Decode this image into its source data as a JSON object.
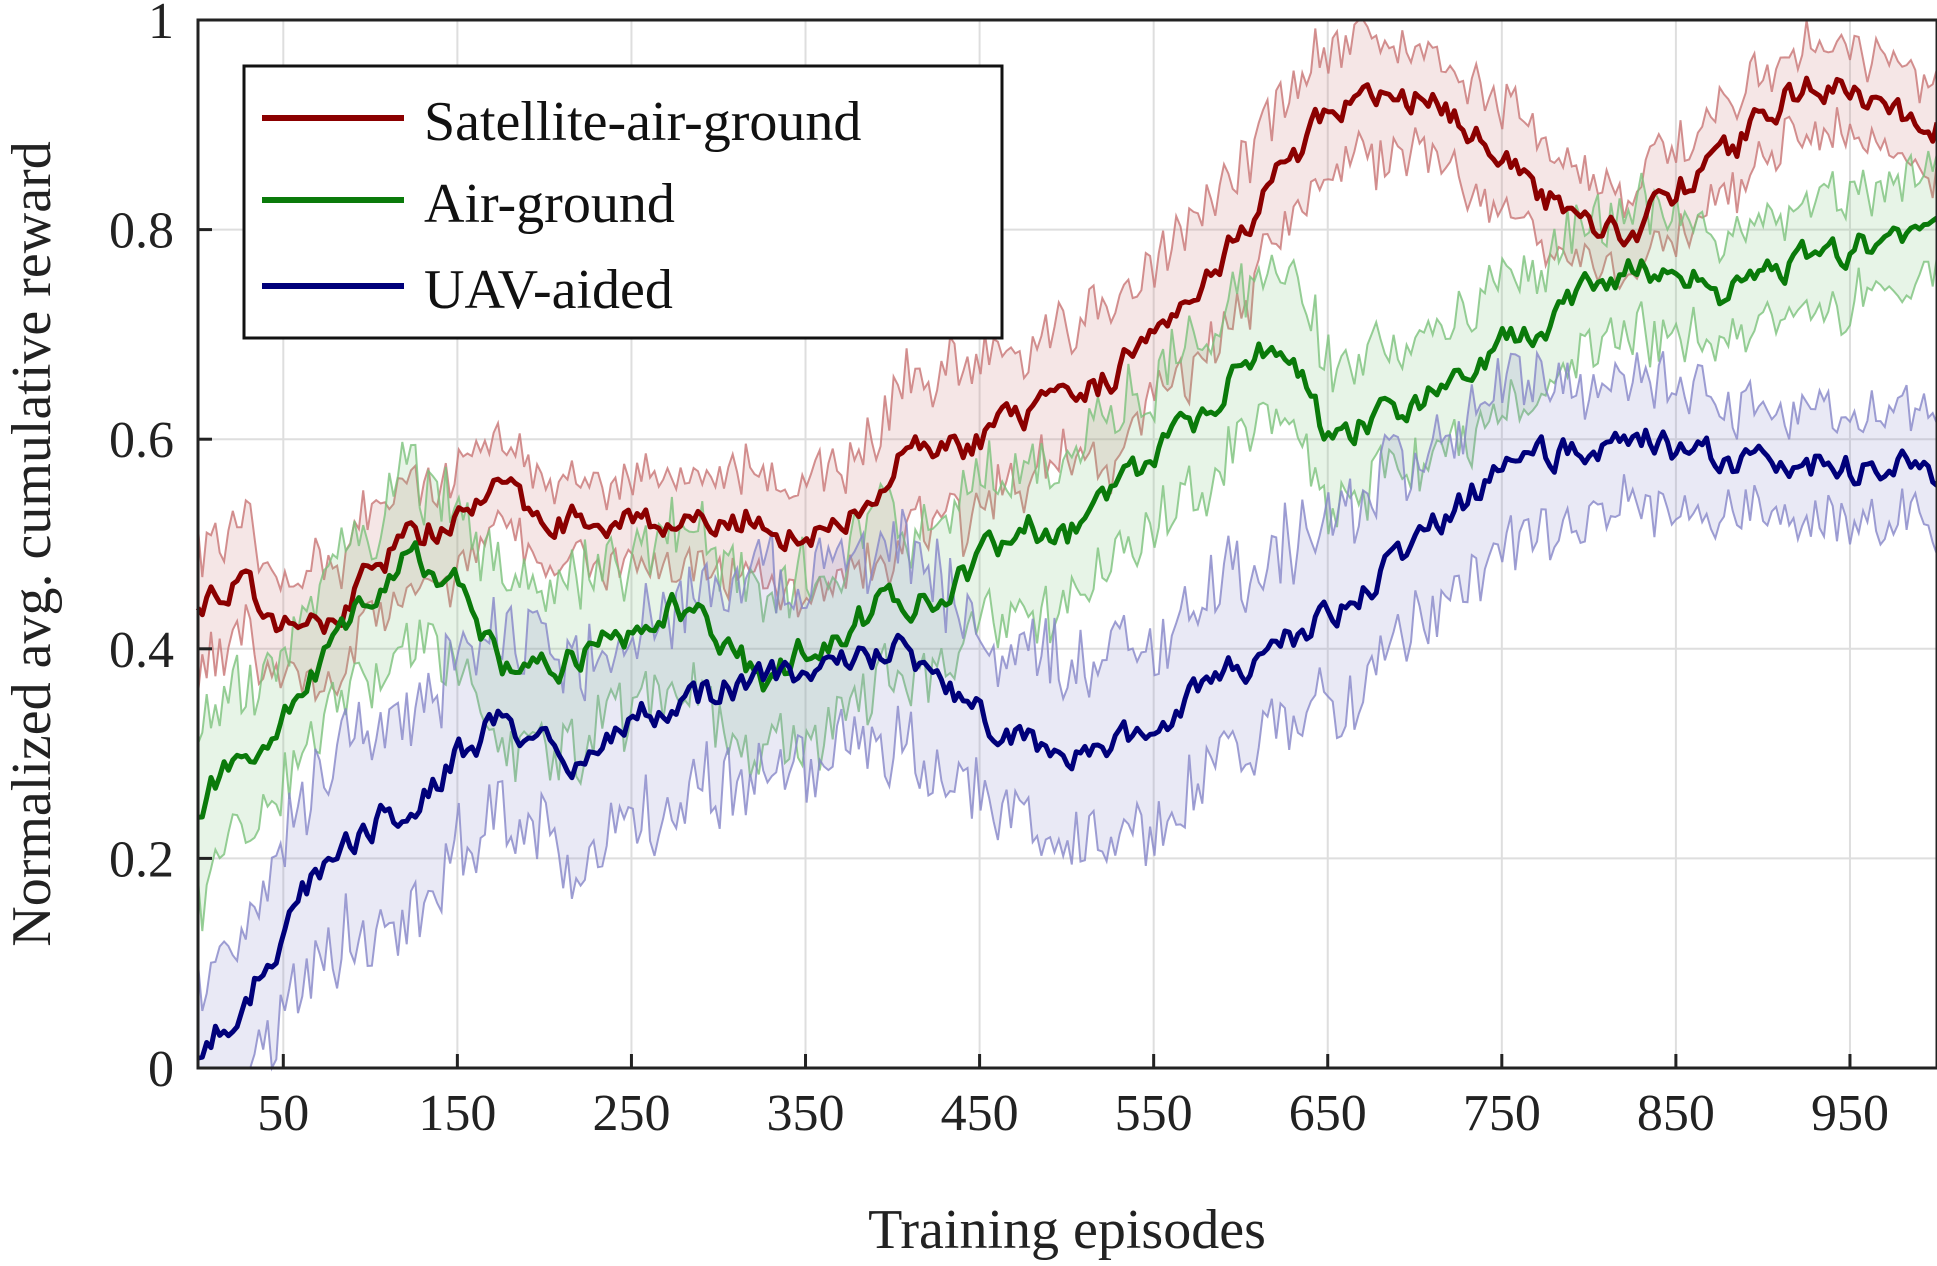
{
  "chart_data": {
    "type": "line",
    "title": "",
    "xlabel": "Training episodes",
    "ylabel": "Normalized avg. cumulative reward",
    "xlim": [
      1,
      1000
    ],
    "ylim": [
      0,
      1
    ],
    "xticks": [
      50,
      150,
      250,
      350,
      450,
      550,
      650,
      750,
      850,
      950
    ],
    "xtick_labels": [
      "50",
      "150",
      "250",
      "350",
      "450",
      "550",
      "650",
      "750",
      "850",
      "950"
    ],
    "yticks": [
      0,
      0.2,
      0.4,
      0.6,
      0.8,
      1
    ],
    "ytick_labels": [
      "0",
      "0.2",
      "0.4",
      "0.6",
      "0.8",
      "1"
    ],
    "grid": true,
    "legend_position": "top-left",
    "x": [
      1,
      25,
      50,
      75,
      100,
      125,
      150,
      175,
      200,
      225,
      250,
      275,
      300,
      325,
      350,
      375,
      400,
      425,
      450,
      475,
      500,
      525,
      550,
      575,
      600,
      625,
      650,
      675,
      700,
      725,
      750,
      775,
      800,
      825,
      850,
      875,
      900,
      925,
      950,
      975,
      1000
    ],
    "series": [
      {
        "name": "Satellite-air-ground",
        "color": "#8b0000",
        "band_color": "#c87474",
        "values": [
          0.45,
          0.46,
          0.42,
          0.42,
          0.48,
          0.51,
          0.52,
          0.55,
          0.53,
          0.52,
          0.53,
          0.52,
          0.51,
          0.53,
          0.5,
          0.52,
          0.58,
          0.59,
          0.6,
          0.62,
          0.63,
          0.66,
          0.71,
          0.75,
          0.8,
          0.86,
          0.91,
          0.92,
          0.93,
          0.9,
          0.88,
          0.83,
          0.81,
          0.8,
          0.84,
          0.86,
          0.91,
          0.94,
          0.93,
          0.91,
          0.9
        ],
        "band_halfwidth": [
          0.06,
          0.05,
          0.05,
          0.06,
          0.05,
          0.05,
          0.05,
          0.04,
          0.04,
          0.04,
          0.04,
          0.04,
          0.05,
          0.05,
          0.05,
          0.06,
          0.07,
          0.07,
          0.07,
          0.06,
          0.06,
          0.07,
          0.07,
          0.07,
          0.07,
          0.06,
          0.06,
          0.06,
          0.05,
          0.05,
          0.05,
          0.05,
          0.04,
          0.04,
          0.04,
          0.04,
          0.04,
          0.04,
          0.04,
          0.04,
          0.04
        ]
      },
      {
        "name": "Air-ground",
        "color": "#0a7a0a",
        "band_color": "#7cc27c",
        "values": [
          0.25,
          0.3,
          0.34,
          0.39,
          0.45,
          0.49,
          0.46,
          0.39,
          0.38,
          0.4,
          0.42,
          0.44,
          0.41,
          0.37,
          0.4,
          0.42,
          0.45,
          0.44,
          0.48,
          0.52,
          0.51,
          0.55,
          0.58,
          0.62,
          0.67,
          0.69,
          0.6,
          0.62,
          0.63,
          0.66,
          0.69,
          0.71,
          0.74,
          0.77,
          0.76,
          0.74,
          0.76,
          0.77,
          0.78,
          0.8,
          0.81
        ],
        "band_halfwidth": [
          0.08,
          0.07,
          0.07,
          0.06,
          0.07,
          0.08,
          0.08,
          0.08,
          0.08,
          0.08,
          0.07,
          0.07,
          0.08,
          0.08,
          0.08,
          0.08,
          0.07,
          0.07,
          0.07,
          0.07,
          0.07,
          0.07,
          0.07,
          0.07,
          0.07,
          0.07,
          0.07,
          0.06,
          0.06,
          0.06,
          0.06,
          0.06,
          0.06,
          0.06,
          0.06,
          0.05,
          0.05,
          0.05,
          0.05,
          0.05,
          0.05
        ]
      },
      {
        "name": "UAV-aided",
        "color": "#00007a",
        "band_color": "#8686c8",
        "values": [
          0.02,
          0.05,
          0.13,
          0.2,
          0.23,
          0.25,
          0.3,
          0.33,
          0.32,
          0.29,
          0.33,
          0.35,
          0.36,
          0.38,
          0.37,
          0.39,
          0.4,
          0.38,
          0.34,
          0.31,
          0.29,
          0.31,
          0.33,
          0.36,
          0.38,
          0.41,
          0.43,
          0.46,
          0.5,
          0.54,
          0.57,
          0.58,
          0.59,
          0.61,
          0.59,
          0.58,
          0.58,
          0.58,
          0.57,
          0.57,
          0.57
        ],
        "band_halfwidth": [
          0.07,
          0.07,
          0.08,
          0.09,
          0.09,
          0.09,
          0.09,
          0.09,
          0.09,
          0.09,
          0.09,
          0.09,
          0.09,
          0.09,
          0.09,
          0.09,
          0.09,
          0.09,
          0.09,
          0.09,
          0.09,
          0.09,
          0.09,
          0.09,
          0.09,
          0.09,
          0.09,
          0.09,
          0.08,
          0.08,
          0.08,
          0.07,
          0.06,
          0.06,
          0.06,
          0.05,
          0.05,
          0.05,
          0.05,
          0.05,
          0.05
        ]
      }
    ]
  }
}
